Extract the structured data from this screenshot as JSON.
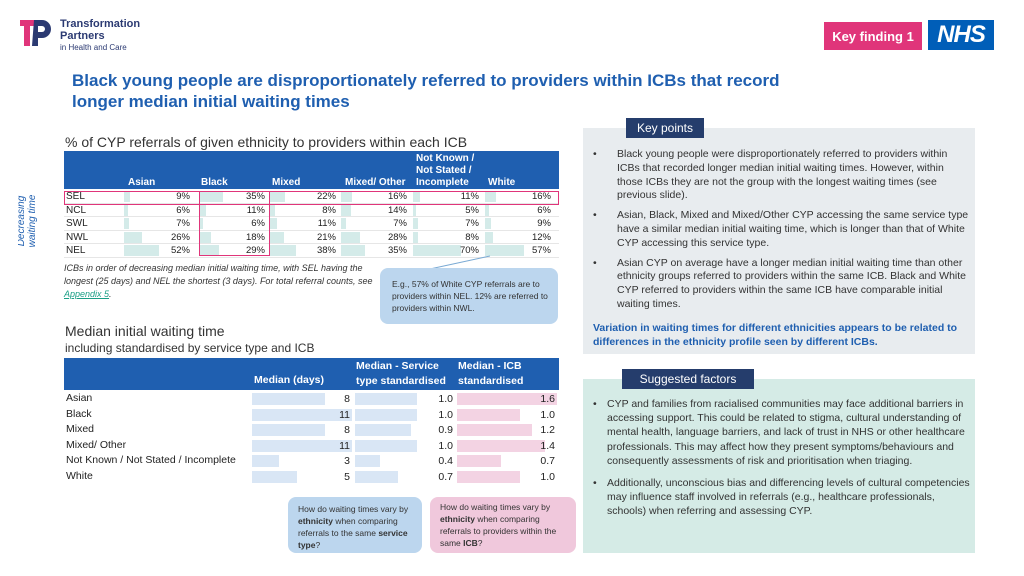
{
  "header": {
    "logo": {
      "line1": "Transformation",
      "line2": "Partners",
      "line3": "in Health and Care"
    },
    "key_finding": "Key finding 1",
    "nhs": "NHS"
  },
  "title": "Black young people are disproportionately referred to providers within ICBs that record longer median initial waiting times",
  "referrals_table": {
    "label": "% of CYP referrals of given ethnicity to providers within each ICB",
    "axis_label": "Decreasing waiting time",
    "columns": [
      "Asian",
      "Black",
      "Mixed",
      "Mixed/ Other",
      "Not Known / Not Stated / Incomplete",
      "White"
    ],
    "header_nk_line1": "Not Known /",
    "header_nk_line2": "Not Stated /",
    "header_nk_line3": "Incomplete",
    "rows": [
      {
        "icb": "SEL",
        "values": [
          "9%",
          "35%",
          "22%",
          "16%",
          "11%",
          "16%"
        ],
        "nums": [
          9,
          35,
          22,
          16,
          11,
          16
        ]
      },
      {
        "icb": "NCL",
        "values": [
          "6%",
          "11%",
          "8%",
          "14%",
          "5%",
          "6%"
        ],
        "nums": [
          6,
          11,
          8,
          14,
          5,
          6
        ]
      },
      {
        "icb": "SWL",
        "values": [
          "7%",
          "6%",
          "11%",
          "7%",
          "7%",
          "9%"
        ],
        "nums": [
          7,
          6,
          11,
          7,
          7,
          9
        ]
      },
      {
        "icb": "NWL",
        "values": [
          "26%",
          "18%",
          "21%",
          "28%",
          "8%",
          "12%"
        ],
        "nums": [
          26,
          18,
          21,
          28,
          8,
          12
        ]
      },
      {
        "icb": "NEL",
        "values": [
          "52%",
          "29%",
          "38%",
          "35%",
          "70%",
          "57%"
        ],
        "nums": [
          52,
          29,
          38,
          35,
          70,
          57
        ]
      }
    ],
    "note_text": "ICBs in order of decreasing median initial waiting time, with SEL having the longest (25 days) and NEL the shortest (3 days). For total referral counts, see ",
    "note_link": "Appendix 5",
    "note_end": ".",
    "callout": "E.g., 57% of White CYP referrals are to providers within NEL. 12% are referred to providers within NWL."
  },
  "waiting_table": {
    "title": "Median initial waiting time",
    "subtitle": "including standardised by service type and ICB",
    "col_median": "Median (days)",
    "col_service_line1": "Median - Service",
    "col_service_line2": "type standardised",
    "col_icb_line1": "Median - ICB",
    "col_icb_line2": "standardised",
    "rows": [
      {
        "label": "Asian",
        "median": "8",
        "service": "1.0",
        "icb": "1.6",
        "m": 8,
        "s": 1.0,
        "i": 1.6
      },
      {
        "label": "Black",
        "median": "11",
        "service": "1.0",
        "icb": "1.0",
        "m": 11,
        "s": 1.0,
        "i": 1.0
      },
      {
        "label": "Mixed",
        "median": "8",
        "service": "0.9",
        "icb": "1.2",
        "m": 8,
        "s": 0.9,
        "i": 1.2
      },
      {
        "label": "Mixed/ Other",
        "median": "11",
        "service": "1.0",
        "icb": "1.4",
        "m": 11,
        "s": 1.0,
        "i": 1.4
      },
      {
        "label": "Not Known / Not Stated / Incomplete",
        "median": "3",
        "service": "0.4",
        "icb": "0.7",
        "m": 3,
        "s": 0.4,
        "i": 0.7
      },
      {
        "label": "White",
        "median": "5",
        "service": "0.7",
        "icb": "1.0",
        "m": 5,
        "s": 0.7,
        "i": 1.0
      }
    ],
    "callout_median_a": "How do waiting times vary by ",
    "callout_median_b": "ethnicity",
    "callout_median_c": " when comparing referrals to the same ",
    "callout_median_d": "service type",
    "callout_median_e": "?",
    "callout_icb_a": "How do waiting times vary by ",
    "callout_icb_b": "ethnicity",
    "callout_icb_c": " when comparing referrals to providers within the same ",
    "callout_icb_d": "ICB",
    "callout_icb_e": "?"
  },
  "key_points": {
    "tag": "Key points",
    "items": [
      "Black young people were disproportionately referred to providers within ICBs that recorded longer median initial waiting times. However, within those ICBs they are not the group with the longest waiting times (see previous slide).",
      "Asian, Black, Mixed and Mixed/Other CYP accessing the same service type have a similar median initial waiting time, which is longer than that of White CYP accessing this service type.",
      "Asian CYP on average have a longer median initial waiting time than other ethnicity groups referred to providers within the same ICB. Black and White CYP referred to providers within the same ICB have comparable initial waiting times."
    ],
    "conclusion": "Variation in waiting times for different ethnicities appears to be related to differences in the ethnicity profile seen by different ICBs."
  },
  "suggested_factors": {
    "tag": "Suggested factors",
    "items": [
      "CYP and families from racialised communities may face additional barriers in accessing support. This could be related to stigma, cultural understanding of mental health, language barriers, and lack of trust in NHS or other healthcare professionals. This may affect how they present symptoms/behaviours and consequently assessments of risk and prioritisation when triaging.",
      "Additionally, unconscious bias and differencing levels of cultural competencies may influence staff involved in referrals (e.g., healthcare professionals, schools) when referring and assessing CYP."
    ]
  },
  "colors": {
    "title_blue": "#1f5fb0",
    "header_blue": "#1f5fb0",
    "pink": "#e0357a",
    "nhs_blue": "#005eb8",
    "tag_navy": "#253d6c",
    "teal_bar": "#d4ebe9",
    "median_bar": "#d9e6f5",
    "icb_bar": "#f3d3e3"
  }
}
